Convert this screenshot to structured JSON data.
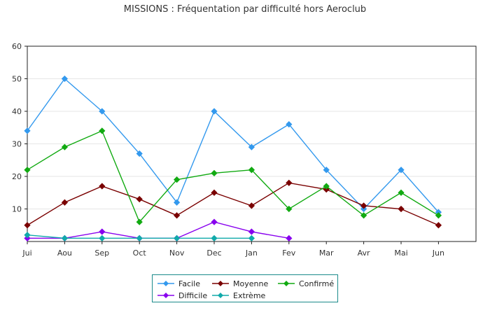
{
  "chart_data": {
    "type": "line",
    "title": "MISSIONS : Fréquentation par difficulté hors Aeroclub",
    "xlabel": "",
    "ylabel": "",
    "categories": [
      "Jui",
      "Aou",
      "Sep",
      "Oct",
      "Nov",
      "Dec",
      "Jan",
      "Fev",
      "Mar",
      "Avr",
      "Mai",
      "Jun"
    ],
    "ylim": [
      0,
      60
    ],
    "yticks": [
      10,
      20,
      30,
      40,
      50,
      60
    ],
    "grid": true,
    "legend_position": "bottom",
    "series": [
      {
        "name": "Facile",
        "color": "#3399ee",
        "values": [
          34,
          50,
          40,
          27,
          12,
          40,
          29,
          36,
          22,
          10,
          22,
          9
        ]
      },
      {
        "name": "Moyenne",
        "color": "#7a0000",
        "values": [
          5,
          12,
          17,
          13,
          8,
          15,
          11,
          18,
          16,
          11,
          10,
          5
        ]
      },
      {
        "name": "Confirmé",
        "color": "#11aa11",
        "values": [
          22,
          29,
          34,
          6,
          19,
          21,
          22,
          10,
          17,
          8,
          15,
          8
        ]
      },
      {
        "name": "Difficile",
        "color": "#8800ee",
        "values": [
          1,
          1,
          3,
          1,
          1,
          6,
          3,
          1,
          null,
          null,
          null,
          null
        ]
      },
      {
        "name": "Extrème",
        "color": "#11aaaa",
        "values": [
          2,
          1,
          1,
          1,
          1,
          1,
          1,
          null,
          null,
          null,
          null,
          null
        ]
      }
    ]
  }
}
